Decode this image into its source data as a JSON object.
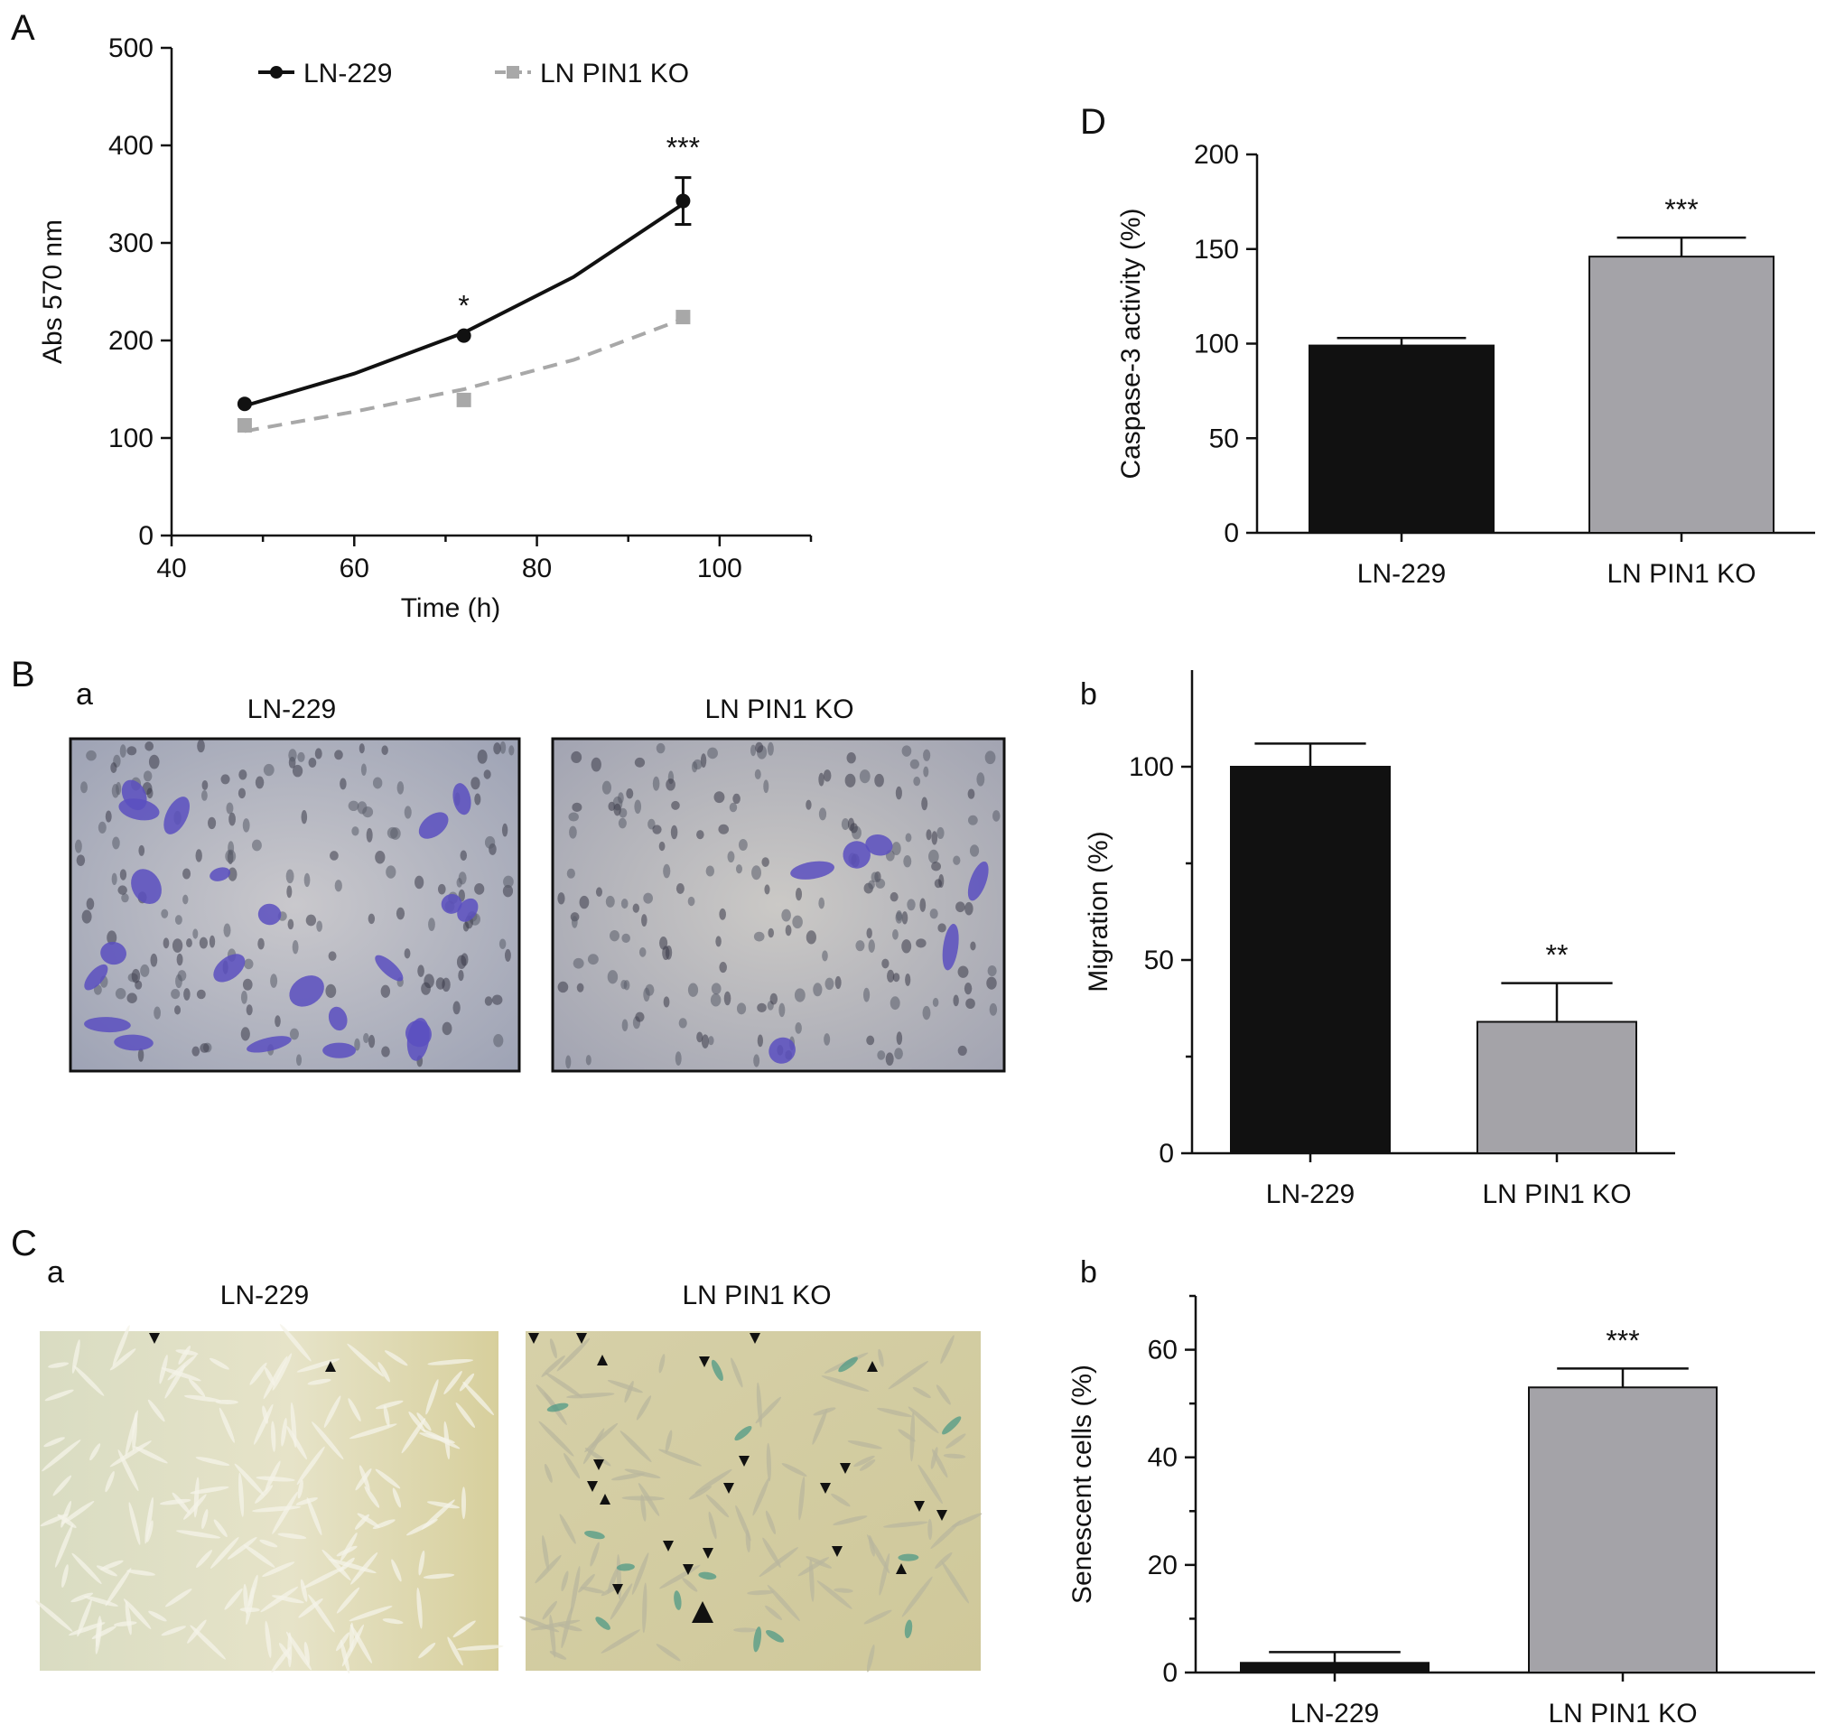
{
  "colors": {
    "black_series": "#111111",
    "gray_series": "#a8a8a8",
    "gray_bar": "#a4a3a8",
    "stain_purple": "#5a4fc0",
    "beta_gal_green": "#4f9a86"
  },
  "panels": {
    "A": {
      "label": "A"
    },
    "B": {
      "label": "B",
      "sub_a": "a",
      "sub_b": "b",
      "image_left_title": "LN-229",
      "image_right_title": "LN PIN1 KO"
    },
    "C": {
      "label": "C",
      "sub_a": "a",
      "sub_b": "b",
      "image_left_title": "LN-229",
      "image_right_title": "LN PIN1 KO"
    },
    "D": {
      "label": "D"
    }
  },
  "chart_data": [
    {
      "id": "A",
      "type": "line",
      "xlabel": "Time (h)",
      "ylabel": "Abs 570 nm",
      "xlim": [
        40,
        110
      ],
      "ylim": [
        0,
        500
      ],
      "xticks": [
        40,
        60,
        80,
        100
      ],
      "yticks": [
        0,
        100,
        200,
        300,
        400,
        500
      ],
      "legend": "top-left",
      "series": [
        {
          "name": "LN-229",
          "style": "solid",
          "marker": "circle",
          "color": "#111111",
          "x": [
            48,
            72,
            96
          ],
          "y": [
            135,
            205,
            343
          ],
          "yerr": [
            0,
            0,
            24
          ],
          "fit_x": [
            48,
            60,
            72,
            84,
            96
          ],
          "fit_y": [
            133,
            166,
            208,
            265,
            340
          ]
        },
        {
          "name": "LN PIN1 KO",
          "style": "dashed",
          "marker": "square",
          "color": "#a8a8a8",
          "x": [
            48,
            72,
            96
          ],
          "y": [
            113,
            139,
            224
          ],
          "yerr": [
            0,
            0,
            0
          ],
          "fit_x": [
            48,
            60,
            72,
            84,
            96
          ],
          "fit_y": [
            107,
            127,
            150,
            180,
            222
          ]
        }
      ],
      "annotations": [
        {
          "x": 72,
          "text": "*"
        },
        {
          "x": 96,
          "text": "***"
        }
      ]
    },
    {
      "id": "B-b",
      "type": "bar",
      "ylabel": "Migration (%)",
      "ylim": [
        0,
        125
      ],
      "yticks": [
        0,
        50,
        100
      ],
      "categories": [
        "LN-229",
        "LN PIN1 KO"
      ],
      "values": [
        100,
        34
      ],
      "errors": [
        6,
        10
      ],
      "annotations": [
        "",
        "**"
      ]
    },
    {
      "id": "C-b",
      "type": "bar",
      "ylabel": "Senescent cells (%)",
      "ylim": [
        0,
        70
      ],
      "yticks": [
        0,
        20,
        40,
        60
      ],
      "categories": [
        "LN-229",
        "LN PIN1 KO"
      ],
      "values": [
        1.8,
        53
      ],
      "errors": [
        2,
        3.5
      ],
      "annotations": [
        "",
        "***"
      ]
    },
    {
      "id": "D",
      "type": "bar",
      "ylabel": "Caspase-3 activity (%)",
      "ylim": [
        0,
        200
      ],
      "yticks": [
        0,
        50,
        100,
        150,
        200
      ],
      "categories": [
        "LN-229",
        "LN PIN1 KO"
      ],
      "values": [
        99,
        146
      ],
      "errors": [
        4,
        10
      ],
      "annotations": [
        "",
        "***"
      ]
    }
  ]
}
